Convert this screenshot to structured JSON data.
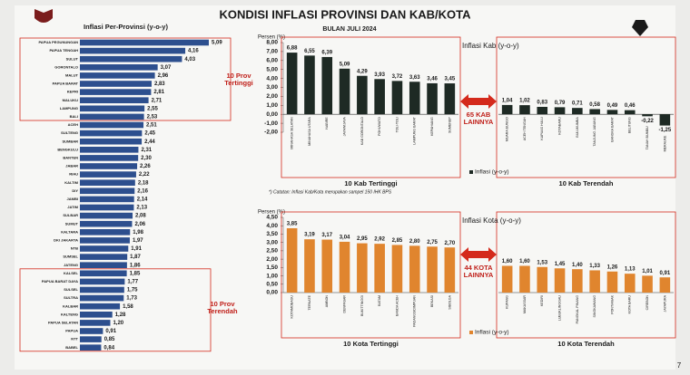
{
  "slide": {
    "title": "KONDISI INFLASI PROVINSI DAN KAB/KOTA",
    "subtitle": "BULAN JULI 2024",
    "page_number": "7"
  },
  "chart_data": [
    {
      "type": "hbar",
      "title": "Inflasi Per-Provinsi (y-o-y)",
      "color": "#2d4f8e",
      "top_label": "10 Prov Tertinggi",
      "bottom_label": "10 Prov Terendah",
      "categories": [
        "PAPUA PEGUNUNGAN",
        "PAPUA TENGAH",
        "SULUT",
        "GORONTALO",
        "MALUT",
        "PAPUA BARAT",
        "KEPRI",
        "MALUKU",
        "LAMPUNG",
        "BALI",
        "ACEH",
        "SULTENG",
        "SUMBAR",
        "BENGKULU",
        "BANTEN",
        "JABAR",
        "RIAU",
        "KALTIM",
        "DIY",
        "JAMBI",
        "JATIM",
        "SULBAR",
        "SUMUT",
        "KALTARA",
        "DKI JAKARTA",
        "NTB",
        "SUMSEL",
        "JATENG",
        "KALSEL",
        "PAPUA BARAT DAYA",
        "SULSEL",
        "SULTRA",
        "KALBAR",
        "KALTENG",
        "PAPUA SELATAN",
        "PAPUA",
        "NTT",
        "BABEL"
      ],
      "values": [
        5.09,
        4.16,
        4.03,
        3.07,
        2.96,
        2.83,
        2.81,
        2.71,
        2.55,
        2.53,
        2.51,
        2.45,
        2.44,
        2.31,
        2.3,
        2.26,
        2.22,
        2.18,
        2.16,
        2.14,
        2.13,
        2.08,
        2.06,
        1.98,
        1.97,
        1.91,
        1.87,
        1.86,
        1.85,
        1.77,
        1.75,
        1.73,
        1.58,
        1.28,
        1.2,
        0.91,
        0.85,
        0.84
      ],
      "value_labels": [
        "5,09",
        "4,16",
        "4,03",
        "3,07",
        "2,96",
        "2,83",
        "2,81",
        "2,71",
        "2,55",
        "2,53",
        "2,51",
        "2,45",
        "2,44",
        "2,31",
        "2,30",
        "2,26",
        "2,22",
        "2,18",
        "2,16",
        "2,14",
        "2,13",
        "2,08",
        "2,06",
        "1,98",
        "1,97",
        "1,91",
        "1,87",
        "1,86",
        "1,85",
        "1,77",
        "1,75",
        "1,73",
        "1,58",
        "1,28",
        "1,20",
        "0,91",
        "0,85",
        "0,84"
      ]
    },
    {
      "type": "grouped-column",
      "title": "Inflasi Kab (y-o-y)",
      "y_label": "Persen (%)",
      "color": "#1e2a24",
      "gap_label": "65 KAB LAINNYA",
      "legend": "Inflasi (y-o-y)",
      "ylim": [
        -2,
        8
      ],
      "yticks": [
        {
          "value": 8,
          "label": "8,00"
        },
        {
          "value": 7,
          "label": "7,00"
        },
        {
          "value": 6,
          "label": "6,00"
        },
        {
          "value": 5,
          "label": "5,00"
        },
        {
          "value": 4,
          "label": "4,00"
        },
        {
          "value": 3,
          "label": "3,00"
        },
        {
          "value": 2,
          "label": "2,00"
        },
        {
          "value": 1,
          "label": "1,00"
        },
        {
          "value": 0,
          "label": "0,00"
        },
        {
          "value": -1,
          "label": "-1,00"
        },
        {
          "value": -2,
          "label": "-2,00"
        }
      ],
      "groups": [
        {
          "label": "10 Kab Tertinggi",
          "categories": [
            "MINAHASA SELATAN",
            "MINAHASA UTARA",
            "NABIRE",
            "JAYAWIJAYA",
            "KAB GORONTALO",
            "POHUWATO",
            "TOLI-TOLI",
            "LAMPUNG BARAT",
            "KEPAHIANG",
            "SUMENEP"
          ],
          "values": [
            6.88,
            6.55,
            6.39,
            5.09,
            4.29,
            3.93,
            3.72,
            3.63,
            3.46,
            3.45
          ],
          "value_labels": [
            "6,88",
            "6,55",
            "6,39",
            "5,09",
            "4,29",
            "3,93",
            "3,72",
            "3,63",
            "3,46",
            "3,45"
          ]
        },
        {
          "label": "10 Kab Terendah",
          "categories": [
            "MUARA BUNGO",
            "ACEH TENGAH",
            "KAPUAS HULU",
            "KOTABARU",
            "BULUKUMBA",
            "TANJUNG JABUNG",
            "BANGKA BARAT",
            "BELITUNG",
            "TANAH BUMBU",
            "MERAUKE"
          ],
          "values": [
            1.04,
            1.02,
            0.83,
            0.79,
            0.71,
            0.58,
            0.49,
            0.46,
            -0.22,
            -1.25
          ],
          "value_labels": [
            "1,04",
            "1,02",
            "0,83",
            "0,79",
            "0,71",
            "0,58",
            "0,49",
            "0,46",
            "-0,22",
            "-1,25"
          ]
        }
      ]
    },
    {
      "type": "grouped-column",
      "title": "Inflasi Kota (y-o-y)",
      "y_label": "Persen (%)",
      "color": "#e0852e",
      "gap_label": "44 KOTA LAINNYA",
      "legend": "Inflasi (y-o-y)",
      "note": "*) Catatan: Inflasi Kab/Kota merupakan sampel 150 IHK BPS",
      "ylim": [
        0,
        4.5
      ],
      "yticks": [
        {
          "value": 4.5,
          "label": "4,50"
        },
        {
          "value": 4,
          "label": "4,00"
        },
        {
          "value": 3.5,
          "label": "3,50"
        },
        {
          "value": 3,
          "label": "3,00"
        },
        {
          "value": 2.5,
          "label": "2,50"
        },
        {
          "value": 2,
          "label": "2,00"
        },
        {
          "value": 1.5,
          "label": "1,50"
        },
        {
          "value": 1,
          "label": "1,00"
        },
        {
          "value": 0.5,
          "label": "0,50"
        },
        {
          "value": 0,
          "label": "0,00"
        }
      ],
      "groups": [
        {
          "label": "10 Kota Tertinggi",
          "categories": [
            "KOTAMOBAGU",
            "TERNATE",
            "AMBON",
            "DENPASAR",
            "BUKITTINGGI",
            "BATAM",
            "BANDA ACEH",
            "PADANGSIDIMPUAN",
            "BEKASI",
            "SIBOLGA"
          ],
          "values": [
            3.85,
            3.19,
            3.17,
            3.04,
            2.95,
            2.92,
            2.85,
            2.8,
            2.75,
            2.7
          ],
          "value_labels": [
            "3,85",
            "3,19",
            "3,17",
            "3,04",
            "2,95",
            "2,92",
            "2,85",
            "2,80",
            "2,75",
            "2,70"
          ]
        },
        {
          "label": "10 Kota Terendah",
          "categories": [
            "KUPANG",
            "MAKASSAR",
            "KEDIRI",
            "LUBUKLINGGAU",
            "PANGKAL PINANG",
            "SINGKAWANG",
            "PONTIANAK",
            "KOTA BARU",
            "CIREBON",
            "JAYAPURA"
          ],
          "values": [
            1.6,
            1.6,
            1.53,
            1.45,
            1.4,
            1.33,
            1.26,
            1.13,
            1.01,
            0.91
          ],
          "value_labels": [
            "1,60",
            "1,60",
            "1,53",
            "1,45",
            "1,40",
            "1,33",
            "1,26",
            "1,13",
            "1,01",
            "0,91"
          ]
        }
      ]
    }
  ]
}
